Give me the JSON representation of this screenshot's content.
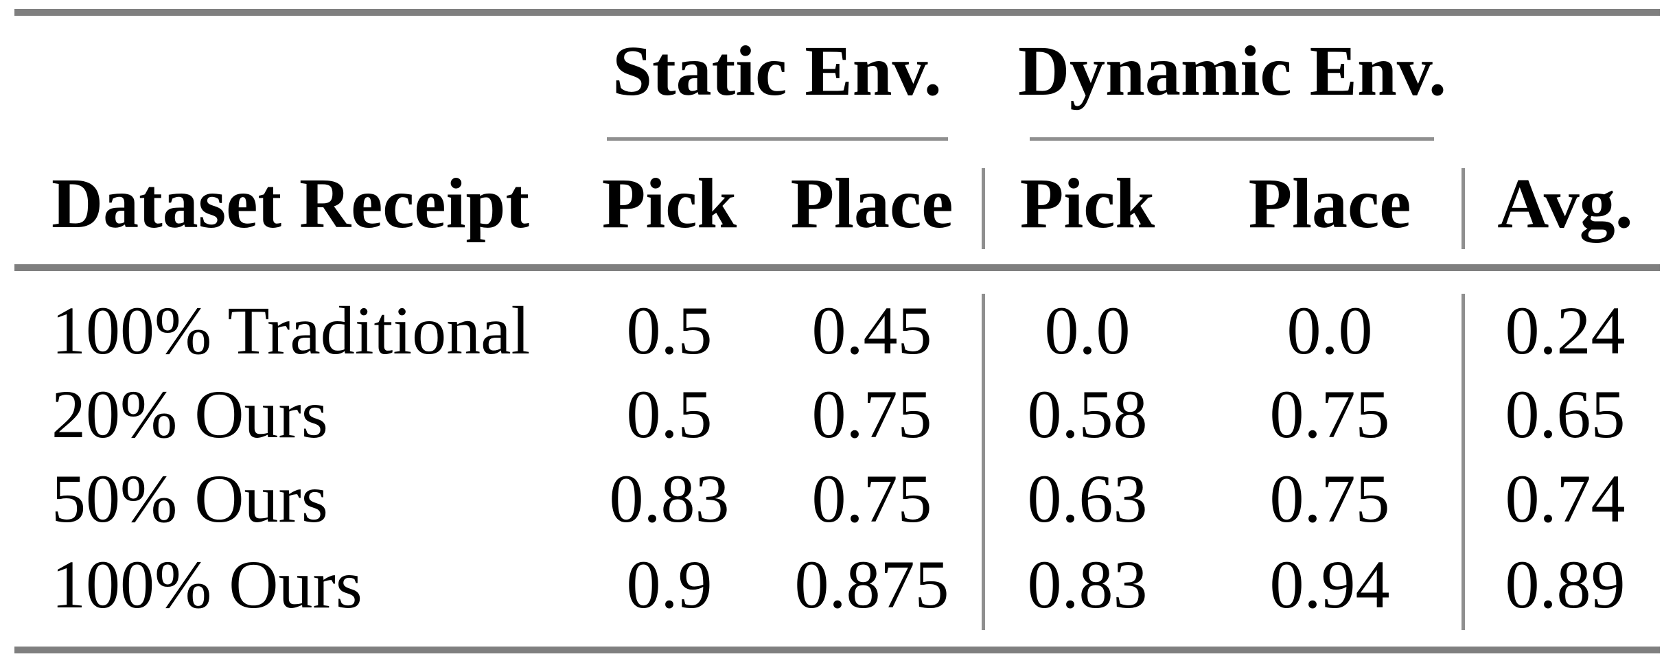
{
  "table": {
    "corner_header": "Dataset Receipt",
    "column_groups": [
      {
        "label": "Static Env.",
        "columns": [
          "Pick",
          "Place"
        ]
      },
      {
        "label": "Dynamic Env.",
        "columns": [
          "Pick",
          "Place"
        ]
      }
    ],
    "avg_header": "Avg.",
    "rows": [
      {
        "label": "100% Traditional",
        "values": [
          "0.5",
          "0.45",
          "0.0",
          "0.0",
          "0.24"
        ]
      },
      {
        "label": "20% Ours",
        "values": [
          "0.5",
          "0.75",
          "0.58",
          "0.75",
          "0.65"
        ]
      },
      {
        "label": "50% Ours",
        "values": [
          "0.83",
          "0.75",
          "0.63",
          "0.75",
          "0.74"
        ]
      },
      {
        "label": "100% Ours",
        "values": [
          "0.9",
          "0.875",
          "0.83",
          "0.94",
          "0.89"
        ]
      }
    ]
  },
  "colors": {
    "text": "#000000",
    "rule_heavy": "#7f7f7f",
    "rule_light": "#8f8f8f",
    "background": "#ffffff"
  }
}
